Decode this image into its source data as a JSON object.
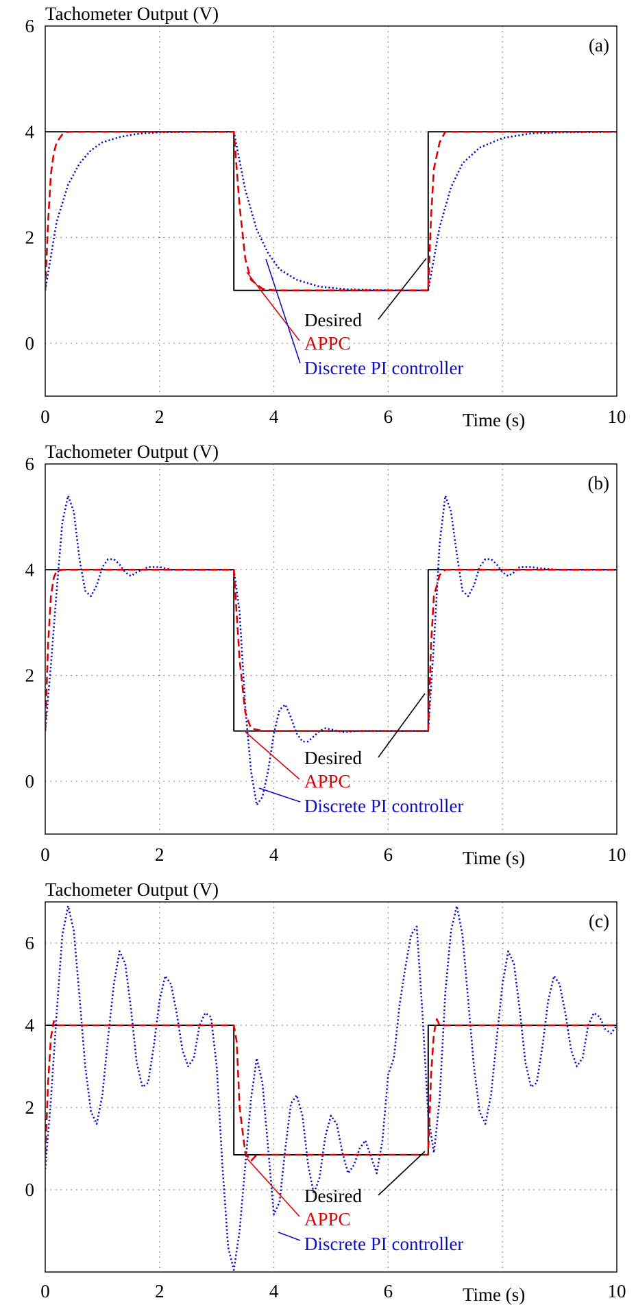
{
  "chart_data": [
    {
      "type": "line",
      "panel_label": "(a)",
      "ylabel": "Tachometer Output (V)",
      "xlabel": "Time (s)",
      "xlim": [
        0,
        10
      ],
      "ylim": [
        -1,
        6
      ],
      "xticks": [
        "0",
        "2",
        "4",
        "6",
        "10"
      ],
      "yticks": [
        "6",
        "4",
        "2",
        "0"
      ],
      "grid": true,
      "colors": {
        "desired": "#000000",
        "appc": "#dd0000",
        "pi": "#1010c0"
      },
      "legend": [
        "Desired",
        "APPC",
        "Discrete PI controller"
      ],
      "series": [
        {
          "name": "Desired",
          "style": "solid",
          "x": [
            0.0,
            3.3,
            3.3,
            6.7,
            6.7,
            10.0
          ],
          "y": [
            4.0,
            4.0,
            1.0,
            1.0,
            4.0,
            4.0
          ]
        },
        {
          "name": "APPC",
          "style": "dashed",
          "x": [
            0.0,
            0.05,
            0.1,
            0.15,
            0.2,
            0.3,
            0.4,
            1.0,
            3.3,
            3.4,
            3.5,
            3.6,
            3.8,
            4.0,
            6.7,
            6.75,
            6.8,
            6.9,
            7.0,
            10.0
          ],
          "y": [
            1.0,
            2.3,
            3.2,
            3.6,
            3.8,
            3.95,
            4.0,
            4.0,
            4.0,
            2.6,
            1.6,
            1.2,
            1.03,
            1.0,
            1.0,
            2.4,
            3.3,
            3.8,
            4.0,
            4.0
          ]
        },
        {
          "name": "Discrete PI controller",
          "style": "dotted",
          "x": [
            0.0,
            0.2,
            0.4,
            0.6,
            0.8,
            1.0,
            1.3,
            1.6,
            2.0,
            2.5,
            3.3,
            3.5,
            3.7,
            3.9,
            4.1,
            4.4,
            4.8,
            5.3,
            6.0,
            6.7,
            6.9,
            7.1,
            7.3,
            7.6,
            8.0,
            8.5,
            9.0,
            10.0
          ],
          "y": [
            1.0,
            2.3,
            3.0,
            3.4,
            3.65,
            3.8,
            3.9,
            3.96,
            3.99,
            4.0,
            4.0,
            2.9,
            2.15,
            1.7,
            1.4,
            1.2,
            1.07,
            1.02,
            1.0,
            1.0,
            2.2,
            2.95,
            3.4,
            3.7,
            3.88,
            3.97,
            3.99,
            4.0
          ]
        }
      ]
    },
    {
      "type": "line",
      "panel_label": "(b)",
      "ylabel": "Tachometer Output (V)",
      "xlabel": "Time (s)",
      "xlim": [
        0,
        10
      ],
      "ylim": [
        -1,
        6
      ],
      "xticks": [
        "0",
        "2",
        "4",
        "6",
        "10"
      ],
      "yticks": [
        "6",
        "4",
        "2",
        "0"
      ],
      "grid": true,
      "colors": {
        "desired": "#000000",
        "appc": "#dd0000",
        "pi": "#1010c0"
      },
      "legend": [
        "Desired",
        "APPC",
        "Discrete PI controller"
      ],
      "series": [
        {
          "name": "Desired",
          "style": "solid",
          "x": [
            0.0,
            3.3,
            3.3,
            6.7,
            6.7,
            10.0
          ],
          "y": [
            4.0,
            4.0,
            0.95,
            0.95,
            4.0,
            4.0
          ]
        },
        {
          "name": "APPC",
          "style": "dashed",
          "x": [
            0.0,
            0.05,
            0.1,
            0.15,
            0.2,
            0.3,
            0.4,
            1.0,
            3.3,
            3.4,
            3.5,
            3.6,
            3.8,
            4.0,
            6.7,
            6.75,
            6.8,
            6.9,
            7.0,
            10.0
          ],
          "y": [
            0.95,
            2.6,
            3.5,
            3.85,
            3.98,
            4.0,
            4.0,
            4.0,
            4.0,
            2.3,
            1.3,
            1.0,
            0.95,
            0.95,
            0.95,
            2.6,
            3.5,
            3.9,
            4.0,
            4.0
          ]
        },
        {
          "name": "Discrete PI controller",
          "style": "dotted",
          "x": [
            0.0,
            0.1,
            0.2,
            0.3,
            0.4,
            0.5,
            0.6,
            0.7,
            0.8,
            0.9,
            1.0,
            1.1,
            1.2,
            1.3,
            1.4,
            1.5,
            1.6,
            1.8,
            2.0,
            2.2,
            2.5,
            3.3,
            3.4,
            3.5,
            3.6,
            3.7,
            3.8,
            3.9,
            4.0,
            4.1,
            4.2,
            4.3,
            4.4,
            4.5,
            4.6,
            4.7,
            4.8,
            4.9,
            5.0,
            5.2,
            5.5,
            6.0,
            6.7,
            6.8,
            6.9,
            7.0,
            7.1,
            7.2,
            7.3,
            7.4,
            7.5,
            7.6,
            7.7,
            7.8,
            7.9,
            8.0,
            8.1,
            8.2,
            8.3,
            8.5,
            8.7,
            9.0,
            10.0
          ],
          "y": [
            0.95,
            2.2,
            3.6,
            4.9,
            5.4,
            5.1,
            4.2,
            3.6,
            3.5,
            3.7,
            4.05,
            4.2,
            4.2,
            4.1,
            3.95,
            3.88,
            3.95,
            4.05,
            4.05,
            4.0,
            4.0,
            4.0,
            3.2,
            1.4,
            0.2,
            -0.45,
            -0.3,
            0.2,
            0.9,
            1.35,
            1.45,
            1.2,
            0.9,
            0.75,
            0.75,
            0.85,
            0.95,
            1.0,
            0.98,
            0.93,
            0.95,
            0.95,
            0.95,
            2.6,
            4.5,
            5.4,
            5.1,
            4.3,
            3.6,
            3.5,
            3.7,
            4.05,
            4.2,
            4.2,
            4.1,
            3.95,
            3.88,
            3.95,
            4.05,
            4.05,
            4.02,
            4.0,
            4.0
          ]
        }
      ]
    },
    {
      "type": "line",
      "panel_label": "(c)",
      "ylabel": "Tachometer Output (V)",
      "xlabel": "Time (s)",
      "xlim": [
        0,
        10
      ],
      "ylim": [
        -2,
        7
      ],
      "xticks": [
        "0",
        "2",
        "4",
        "6",
        "10"
      ],
      "yticks": [
        "6",
        "4",
        "2",
        "0"
      ],
      "grid": true,
      "colors": {
        "desired": "#000000",
        "appc": "#dd0000",
        "pi": "#1010c0"
      },
      "legend": [
        "Desired",
        "APPC",
        "Discrete PI controller"
      ],
      "series": [
        {
          "name": "Desired",
          "style": "solid",
          "x": [
            0.0,
            3.3,
            3.3,
            6.7,
            6.7,
            10.0
          ],
          "y": [
            4.0,
            4.0,
            0.85,
            0.85,
            4.0,
            4.0
          ]
        },
        {
          "name": "APPC",
          "style": "dashed",
          "x": [
            0.0,
            0.05,
            0.1,
            0.15,
            0.2,
            0.3,
            1.0,
            3.3,
            3.35,
            3.4,
            3.5,
            3.6,
            3.7,
            3.8,
            6.7,
            6.75,
            6.8,
            6.85,
            6.9,
            7.0,
            10.0
          ],
          "y": [
            0.85,
            2.6,
            3.7,
            4.1,
            4.0,
            4.0,
            4.0,
            4.0,
            3.6,
            2.0,
            0.9,
            0.7,
            0.85,
            0.85,
            0.85,
            2.8,
            3.8,
            4.15,
            4.0,
            4.0,
            4.0
          ]
        },
        {
          "name": "Discrete PI controller",
          "style": "dotted",
          "x": [
            0.0,
            0.1,
            0.2,
            0.3,
            0.4,
            0.5,
            0.6,
            0.7,
            0.8,
            0.9,
            1.0,
            1.1,
            1.2,
            1.3,
            1.4,
            1.5,
            1.6,
            1.7,
            1.8,
            1.9,
            2.0,
            2.1,
            2.2,
            2.3,
            2.4,
            2.5,
            2.6,
            2.7,
            2.8,
            2.9,
            3.0,
            3.1,
            3.2,
            3.3,
            3.4,
            3.5,
            3.6,
            3.7,
            3.8,
            3.9,
            4.0,
            4.1,
            4.2,
            4.3,
            4.4,
            4.5,
            4.6,
            4.7,
            4.8,
            4.9,
            5.0,
            5.1,
            5.2,
            5.3,
            5.4,
            5.5,
            5.6,
            5.7,
            5.8,
            5.9,
            6.0,
            6.1,
            6.2,
            6.3,
            6.4,
            6.5,
            6.6,
            6.7,
            6.8,
            6.9,
            7.0,
            7.1,
            7.2,
            7.3,
            7.4,
            7.5,
            7.6,
            7.7,
            7.8,
            7.9,
            8.0,
            8.1,
            8.2,
            8.3,
            8.4,
            8.5,
            8.6,
            8.7,
            8.8,
            8.9,
            9.0,
            9.1,
            9.2,
            9.3,
            9.4,
            9.5,
            9.6,
            9.7,
            9.8,
            9.9,
            10.0
          ],
          "y": [
            0.5,
            2.2,
            4.3,
            6.2,
            6.9,
            6.3,
            4.7,
            3.0,
            1.9,
            1.6,
            2.3,
            3.7,
            5.0,
            5.8,
            5.5,
            4.4,
            3.1,
            2.5,
            2.6,
            3.5,
            4.6,
            5.2,
            5.0,
            4.3,
            3.4,
            3.0,
            3.2,
            4.0,
            4.3,
            4.2,
            3.0,
            0.6,
            -1.4,
            -1.95,
            -1.0,
            0.6,
            2.2,
            3.2,
            2.6,
            1.0,
            -0.6,
            -0.3,
            1.0,
            2.1,
            2.3,
            1.8,
            0.6,
            -0.1,
            0.3,
            1.3,
            1.8,
            1.6,
            0.9,
            0.4,
            0.6,
            1.0,
            1.2,
            0.8,
            0.4,
            1.2,
            2.8,
            3.2,
            4.5,
            5.4,
            6.2,
            6.4,
            4.3,
            1.8,
            0.9,
            2.2,
            4.8,
            6.3,
            6.9,
            6.2,
            4.6,
            3.0,
            1.9,
            1.6,
            2.3,
            3.7,
            5.0,
            5.8,
            5.5,
            4.4,
            3.1,
            2.5,
            2.6,
            3.5,
            4.6,
            5.2,
            5.0,
            4.3,
            3.4,
            3.0,
            3.2,
            4.0,
            4.3,
            4.2,
            3.9,
            3.8,
            4.0
          ]
        }
      ]
    }
  ]
}
